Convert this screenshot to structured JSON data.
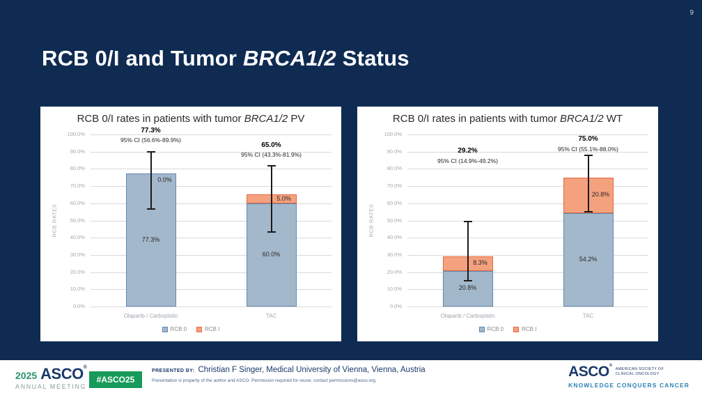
{
  "slide": {
    "page_number": "9",
    "title": {
      "prefix": "RCB 0/I and Tumor ",
      "italic": "BRCA1/2",
      "suffix": " Status"
    }
  },
  "colors": {
    "background_navy": "#0F2B52",
    "panel_white": "#FFFFFF",
    "grid_line": "#D9D9D9",
    "axis_text": "#A6A6A6",
    "error_bar_black": "#1A1A1A",
    "rcb0_fill": "#A4B8CB",
    "rcb0_border": "#5D88B4",
    "rcb1_fill": "#F4A17E",
    "rcb1_border": "#E4693F",
    "badge_green": "#189A5A",
    "logo_navy": "#1B3A6B",
    "logo_green": "#2B9469",
    "tagline_blue": "#2E7FB5"
  },
  "chart_data": [
    {
      "type": "bar",
      "stacked": true,
      "title": {
        "prefix": "RCB 0/I rates in patients with tumor ",
        "italic": "BRCA1/2",
        "suffix": " PV"
      },
      "ylabel": "RCB RATES",
      "ylim": [
        0,
        100
      ],
      "ytick_step": 10,
      "grid": true,
      "legend_position": "bottom",
      "categories": [
        "Olaparib / Carboplatin",
        "TAC"
      ],
      "series": [
        {
          "name": "RCB 0",
          "values": [
            77.3,
            60.0
          ],
          "fill": "#A4B8CB",
          "border": "#5D88B4"
        },
        {
          "name": "RCB I",
          "values": [
            0.0,
            5.0
          ],
          "fill": "#F4A17E",
          "border": "#E4693F"
        }
      ],
      "segment_labels": [
        [
          "77.3%",
          "0.0%"
        ],
        [
          "60.0%",
          "5.0%"
        ]
      ],
      "totals": [
        {
          "label": "77.3%",
          "ci": "95% CI (56.6%-89.9%)",
          "y_pct": 102.5
        },
        {
          "label": "65.0%",
          "ci": "95% CI (43.3%-81.9%)",
          "y_pct": 94
        }
      ],
      "error_bars": [
        {
          "low": 56.6,
          "high": 89.9
        },
        {
          "low": 43.3,
          "high": 81.9
        }
      ]
    },
    {
      "type": "bar",
      "stacked": true,
      "title": {
        "prefix": "RCB 0/I rates in patients with tumor ",
        "italic": "BRCA1/2",
        "suffix": " WT"
      },
      "ylabel": "RCB RATES",
      "ylim": [
        0,
        100
      ],
      "ytick_step": 10,
      "grid": true,
      "legend_position": "bottom",
      "categories": [
        "Olaparib / Carboplatin",
        "TAC"
      ],
      "series": [
        {
          "name": "RCB 0",
          "values": [
            20.8,
            54.2
          ],
          "fill": "#A4B8CB",
          "border": "#5D88B4"
        },
        {
          "name": "RCB I",
          "values": [
            8.3,
            20.8
          ],
          "fill": "#F4A17E",
          "border": "#E4693F"
        }
      ],
      "segment_labels": [
        [
          "20.8%",
          "8.3%"
        ],
        [
          "54.2%",
          "20.8%"
        ]
      ],
      "totals": [
        {
          "label": "29.2%",
          "ci": "95% CI (14.9%-49.2%)",
          "y_pct": 90.5
        },
        {
          "label": "75.0%",
          "ci": "95% CI (55.1%-88.0%)",
          "y_pct": 97.5
        }
      ],
      "error_bars": [
        {
          "low": 14.9,
          "high": 49.2
        },
        {
          "low": 55.1,
          "high": 88.0
        }
      ]
    }
  ],
  "footer": {
    "meeting_logo": {
      "year": "2025",
      "asco": "ASCO",
      "reg": "®",
      "subtitle": "ANNUAL MEETING"
    },
    "hashtag_badge": "#ASCO25",
    "presented_by_label": "PRESENTED BY:",
    "presenter": "Christian F Singer, Medical University of Vienna, Vienna, Austria",
    "disclaimer": "Presentation is property of the author and ASCO. Permission required for reuse; contact permissions@asco.org.",
    "asco_logo": {
      "asco": "ASCO",
      "reg": "®",
      "society_line1": "AMERICAN SOCIETY OF",
      "society_line2": "CLINICAL ONCOLOGY",
      "tagline": "KNOWLEDGE CONQUERS CANCER"
    }
  }
}
